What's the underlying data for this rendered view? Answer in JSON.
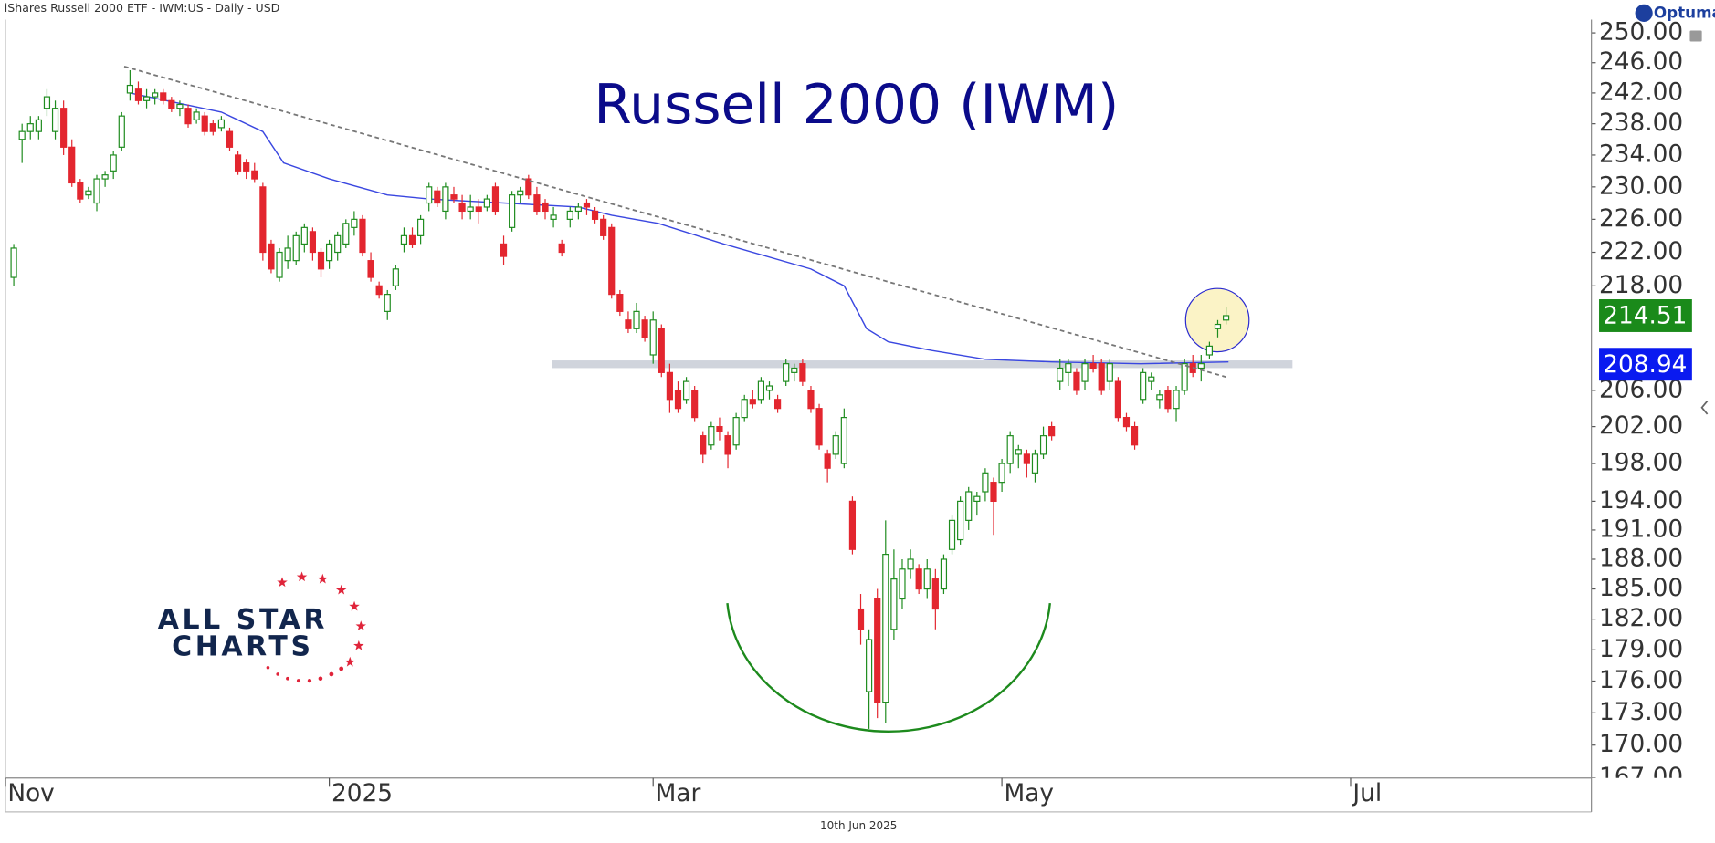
{
  "header": "iShares Russell 2000 ETF - IWM:US - Daily - USD",
  "brand": "Optuma",
  "date_label": "10th Jun 2025",
  "logo": [
    "ALL STAR",
    "CHARTS"
  ],
  "chart_data": {
    "type": "candlestick",
    "title": "Russell 2000 (IWM)",
    "log_scale": true,
    "up_color": "#1f8c1f",
    "down_color": "#e3262f",
    "xlim": [
      -1,
      190
    ],
    "ylim": [
      167,
      251.8
    ],
    "xticks": [
      {
        "value": -1,
        "label": "Nov"
      },
      {
        "value": 38,
        "label": "2025"
      },
      {
        "value": 77,
        "label": "Mar"
      },
      {
        "value": 119,
        "label": "May"
      },
      {
        "value": 161,
        "label": "Jul"
      }
    ],
    "yticks": [
      {
        "value": 250,
        "label": "250.00"
      },
      {
        "value": 246,
        "label": "246.00"
      },
      {
        "value": 242,
        "label": "242.00"
      },
      {
        "value": 238,
        "label": "238.00"
      },
      {
        "value": 234,
        "label": "234.00"
      },
      {
        "value": 230,
        "label": "230.00"
      },
      {
        "value": 226,
        "label": "226.00"
      },
      {
        "value": 222,
        "label": "222.00"
      },
      {
        "value": 218,
        "label": "218.00"
      },
      {
        "value": 206,
        "label": "206.00"
      },
      {
        "value": 202,
        "label": "202.00"
      },
      {
        "value": 198,
        "label": "198.00"
      },
      {
        "value": 194,
        "label": "194.00"
      },
      {
        "value": 191,
        "label": "191.00"
      },
      {
        "value": 188,
        "label": "188.00"
      },
      {
        "value": 185,
        "label": "185.00"
      },
      {
        "value": 182,
        "label": "182.00"
      },
      {
        "value": 179,
        "label": "179.00"
      },
      {
        "value": 176,
        "label": "176.00"
      },
      {
        "value": 173,
        "label": "173.00"
      },
      {
        "value": 170,
        "label": "170.00"
      },
      {
        "value": 167,
        "label": "167.00"
      }
    ],
    "ohlc": [
      [
        219,
        223,
        218,
        222.5
      ],
      [
        236,
        238,
        233,
        237
      ],
      [
        237,
        239,
        236,
        238
      ],
      [
        237,
        239,
        236,
        238.5
      ],
      [
        240,
        242.5,
        239,
        241.5
      ],
      [
        237,
        241,
        236,
        240
      ],
      [
        240,
        241,
        234,
        235
      ],
      [
        235,
        236,
        230,
        230.5
      ],
      [
        230.5,
        231,
        228,
        228.5
      ],
      [
        229,
        230,
        228.5,
        229.5
      ],
      [
        228,
        231.5,
        227,
        231
      ],
      [
        231,
        232,
        230,
        231.5
      ],
      [
        232,
        234.5,
        231,
        234
      ],
      [
        235,
        239.5,
        234.5,
        239
      ],
      [
        242,
        245,
        241,
        243
      ],
      [
        242.5,
        243.5,
        240.5,
        241
      ],
      [
        241,
        242.5,
        240,
        241.5
      ],
      [
        241.5,
        242.5,
        240.5,
        242
      ],
      [
        242,
        242.5,
        240.5,
        241
      ],
      [
        241,
        241.5,
        239.5,
        240
      ],
      [
        240,
        241,
        239,
        240.5
      ],
      [
        240,
        240.5,
        237.5,
        238
      ],
      [
        238.5,
        240,
        238,
        239.5
      ],
      [
        239,
        239.5,
        236.5,
        237
      ],
      [
        238,
        238.5,
        236.5,
        237
      ],
      [
        237.5,
        239,
        237,
        238.5
      ],
      [
        237,
        237.5,
        234.5,
        235
      ],
      [
        234,
        234.5,
        231.5,
        232
      ],
      [
        233,
        233.5,
        231,
        232
      ],
      [
        232,
        233,
        230.5,
        231
      ],
      [
        230,
        230.5,
        221,
        222
      ],
      [
        223,
        223.5,
        219.5,
        220
      ],
      [
        219,
        222.5,
        218.5,
        222
      ],
      [
        221,
        224,
        220,
        222.5
      ],
      [
        221,
        224.5,
        220.5,
        224
      ],
      [
        223,
        225.5,
        222,
        225
      ],
      [
        224.5,
        225,
        221,
        222
      ],
      [
        222,
        222.5,
        219,
        220
      ],
      [
        221,
        223.5,
        220,
        223
      ],
      [
        222,
        224.5,
        221,
        224
      ],
      [
        223,
        226,
        222.5,
        225.5
      ],
      [
        225,
        227,
        224,
        226
      ],
      [
        226,
        226.5,
        221.5,
        222
      ],
      [
        221,
        222,
        218.5,
        219
      ],
      [
        218,
        218.5,
        216.5,
        217
      ],
      [
        215,
        217.5,
        214,
        217
      ],
      [
        218,
        220.5,
        217.5,
        220
      ],
      [
        223,
        225,
        222,
        224
      ],
      [
        224,
        225,
        222.5,
        223
      ],
      [
        224,
        226.5,
        223,
        226
      ],
      [
        228,
        230.5,
        227,
        230
      ],
      [
        229.5,
        230,
        227.5,
        228
      ],
      [
        227,
        230.5,
        226,
        230
      ],
      [
        229,
        230,
        228,
        228.5
      ],
      [
        228,
        229,
        226,
        227
      ],
      [
        227,
        229,
        226,
        227.5
      ],
      [
        227.5,
        228.5,
        225.5,
        227
      ],
      [
        227.5,
        229,
        227,
        228.5
      ],
      [
        230,
        230.5,
        226.5,
        227
      ],
      [
        223,
        224,
        220.5,
        221.5
      ],
      [
        225,
        229.5,
        224.5,
        229
      ],
      [
        229,
        230,
        228,
        229.5
      ],
      [
        231,
        231.5,
        228.5,
        229
      ],
      [
        229,
        230,
        226.5,
        227
      ],
      [
        228,
        228.5,
        226,
        227
      ],
      [
        226,
        227.5,
        225,
        226.5
      ],
      [
        223,
        223.5,
        221.5,
        222
      ],
      [
        226,
        227.5,
        225,
        227
      ],
      [
        227,
        228,
        226,
        227.5
      ],
      [
        228,
        228.5,
        226.5,
        227.5
      ],
      [
        227,
        227.5,
        225.5,
        226
      ],
      [
        226,
        226.5,
        223.5,
        224
      ],
      [
        225,
        225.5,
        216.5,
        217
      ],
      [
        217,
        217.5,
        214.5,
        215
      ],
      [
        214,
        215,
        212.5,
        213
      ],
      [
        213,
        216,
        212.5,
        215
      ],
      [
        214,
        214.5,
        211.5,
        212
      ],
      [
        210,
        215,
        209,
        214
      ],
      [
        213,
        213.5,
        207.5,
        208
      ],
      [
        208,
        209,
        203.5,
        205
      ],
      [
        206,
        207,
        203.5,
        204
      ],
      [
        205,
        207.5,
        204.5,
        207
      ],
      [
        206,
        206.5,
        202.5,
        203
      ],
      [
        201,
        201.5,
        198,
        199
      ],
      [
        200,
        202.5,
        199.5,
        202
      ],
      [
        202,
        203,
        200.5,
        201.5
      ],
      [
        201,
        201.5,
        197.5,
        199
      ],
      [
        200,
        203.5,
        199.5,
        203
      ],
      [
        203,
        205.5,
        202.5,
        205
      ],
      [
        205,
        206,
        204,
        204.5
      ],
      [
        205,
        207.5,
        204.5,
        207
      ],
      [
        206,
        207,
        205,
        206.5
      ],
      [
        205,
        205.5,
        203.5,
        204
      ],
      [
        207,
        209.5,
        206.5,
        209
      ],
      [
        208,
        209,
        207,
        208.5
      ],
      [
        209,
        209.5,
        206.5,
        207
      ],
      [
        206,
        206.5,
        203.5,
        204
      ],
      [
        204,
        204.5,
        199.5,
        200
      ],
      [
        199,
        199.5,
        196,
        197.5
      ],
      [
        199,
        201.5,
        198.5,
        201
      ],
      [
        198,
        204,
        197.5,
        203
      ],
      [
        194,
        194.5,
        188.5,
        189
      ],
      [
        183,
        184.5,
        179.5,
        181
      ],
      [
        175,
        181,
        171.5,
        180
      ],
      [
        184,
        185,
        172.5,
        174
      ],
      [
        174,
        192,
        172,
        188.5
      ],
      [
        181,
        189,
        180,
        186
      ],
      [
        184,
        188,
        183,
        187
      ],
      [
        187,
        189,
        186,
        188
      ],
      [
        187,
        187.5,
        184.5,
        185
      ],
      [
        185,
        188,
        184,
        187
      ],
      [
        186,
        187,
        181,
        183
      ],
      [
        185,
        188.5,
        184.5,
        188
      ],
      [
        189,
        192.5,
        188.5,
        192
      ],
      [
        190,
        194.5,
        189.5,
        194
      ],
      [
        192,
        195.5,
        191,
        195
      ],
      [
        194,
        195,
        192.5,
        194.5
      ],
      [
        195,
        197.5,
        194,
        197
      ],
      [
        196,
        196.5,
        190.5,
        194
      ],
      [
        196,
        198.5,
        195,
        198
      ],
      [
        198,
        201.5,
        197,
        201
      ],
      [
        199,
        200,
        197.5,
        199.5
      ],
      [
        199,
        199.5,
        196.5,
        198
      ],
      [
        197,
        199.5,
        196,
        199
      ],
      [
        199,
        202,
        198.5,
        201
      ],
      [
        202,
        202.5,
        200.5,
        201
      ],
      [
        207,
        209.5,
        206,
        208.5
      ],
      [
        208,
        209.5,
        206.5,
        209
      ],
      [
        208,
        208.5,
        205.5,
        206
      ],
      [
        207,
        209.5,
        206,
        209
      ],
      [
        209,
        210,
        208,
        208.5
      ],
      [
        209,
        209.5,
        205.5,
        206
      ],
      [
        207,
        209.5,
        206,
        209
      ],
      [
        207,
        207.5,
        202.5,
        203
      ],
      [
        203,
        203.5,
        201.5,
        202
      ],
      [
        202,
        202.5,
        199.5,
        200
      ],
      [
        205,
        208.5,
        204.5,
        208
      ],
      [
        207,
        208,
        206,
        207.5
      ],
      [
        205,
        206,
        204,
        205.5
      ],
      [
        206,
        206.5,
        203.5,
        204
      ],
      [
        204,
        206.5,
        202.5,
        206
      ],
      [
        206,
        209.5,
        205.5,
        209
      ],
      [
        209,
        210,
        207.5,
        208
      ],
      [
        208.5,
        210,
        207,
        209
      ],
      [
        210,
        211.5,
        209.5,
        211
      ],
      [
        213,
        214,
        212,
        213.5
      ],
      [
        214,
        215.5,
        213.5,
        214.51
      ]
    ],
    "moving_average": {
      "color": "#3a47e0",
      "x": [
        14,
        25,
        30,
        32.5,
        38,
        45,
        50,
        59,
        68,
        72,
        77.6,
        85.5,
        96,
        100,
        102.7,
        105.3,
        110.6,
        117,
        125,
        135.7,
        146.3
      ],
      "values": [
        242,
        239.5,
        237,
        233,
        231,
        229,
        228.5,
        228,
        227.5,
        226.5,
        225.5,
        223,
        220,
        218,
        213,
        211.5,
        210.5,
        209.5,
        209.2,
        209,
        209.2
      ]
    },
    "trendline": {
      "color": "#777777",
      "x": [
        13.3,
        146
      ],
      "values": [
        245.5,
        207.5
      ]
    },
    "support": {
      "color": "#c8cdd6",
      "x": [
        64.8,
        154
      ],
      "value": 208.94
    },
    "price_tags": [
      {
        "value": 214.51,
        "color": "#1a8a1a"
      },
      {
        "value": 208.94,
        "color": "#0a1af0"
      }
    ]
  }
}
